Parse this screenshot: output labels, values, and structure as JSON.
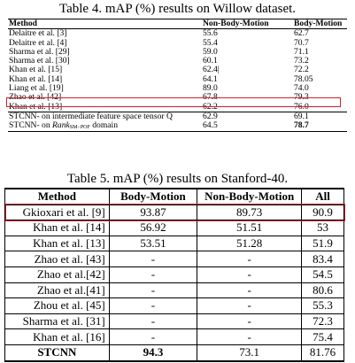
{
  "table4": {
    "caption": "Table 4. mAP (%) results on Willow dataset.",
    "headers": [
      "Method",
      "Non-Body-Motion",
      "Body-Motion"
    ],
    "rows": [
      [
        "Delaitre et al. [3]",
        "55.6",
        "62.7"
      ],
      [
        "Delaitre et al. [4]",
        "55.4",
        "70.7"
      ],
      [
        "Sharma et al. [29]",
        "59.0",
        "71.1"
      ],
      [
        "Sharma et al. [30]",
        "60.1",
        "73.2"
      ],
      [
        "Khan et al. [15]",
        "62.4|",
        "72.2"
      ],
      [
        "Khan et al. [14]",
        "64.1",
        "78.05"
      ],
      [
        "Liang et al. [19]",
        "89.0",
        "74.0"
      ],
      [
        "Zhao et al. [42]",
        "67.8",
        "79.3"
      ],
      [
        "Khan et al. [13]",
        "62.2",
        "76.0"
      ]
    ],
    "stcnn_rows": [
      [
        "STCNN- on intermediate feature space tensor Q",
        "62.9",
        "69.1"
      ],
      [
        "STCNN- on ",
        "Rank",
        "SM−POF",
        " domain",
        "64.5",
        "78.7"
      ]
    ],
    "highlight_color": "#d41f2a"
  },
  "table5": {
    "caption": "Table 5. mAP (%) results on Stanford-40.",
    "headers": [
      "Method",
      "Body-Motion",
      "Non-Body-Motion",
      "All"
    ],
    "rows": [
      [
        "Gkioxari et al. [9]",
        "93.87",
        "89.73",
        "90.9"
      ],
      [
        "Khan et al. [14]",
        "56.92",
        "51.51",
        "53"
      ],
      [
        "Khan et al. [13]",
        "53.51",
        "51.28",
        "51.9"
      ],
      [
        "Zhao et al. [43]",
        "-",
        "-",
        "83.4"
      ],
      [
        "Zhao et al.[42]",
        "-",
        "-",
        "54.5"
      ],
      [
        "Zhao et al.[41]",
        "-",
        "-",
        "80.6"
      ],
      [
        "Zhou et al. [45]",
        "-",
        "-",
        "55.3"
      ],
      [
        "Sharma et al. [31]",
        "-",
        "-",
        "72.3"
      ],
      [
        "Khan et al. [16]",
        "-",
        "-",
        "75.4"
      ],
      [
        "STCNN",
        "94.3",
        "73.1",
        "81.76"
      ]
    ],
    "highlight_color": "#d41f2a"
  }
}
